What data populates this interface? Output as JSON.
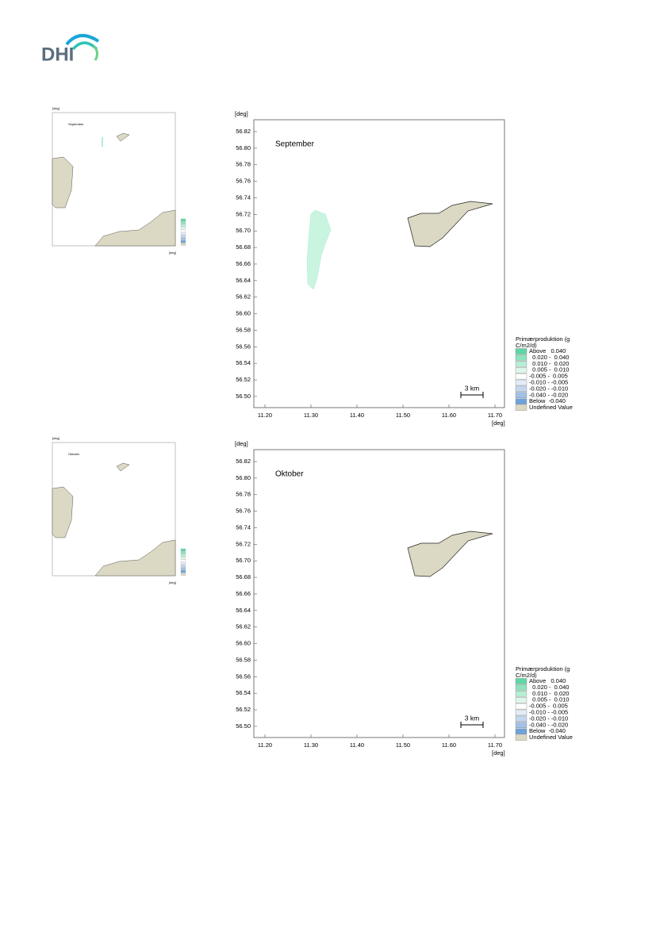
{
  "logo": "DHI",
  "maps": [
    {
      "title": "September"
    },
    {
      "title": "Oktober"
    }
  ],
  "axis": {
    "unit": "[deg]",
    "yticks": [
      "56.82",
      "56.80",
      "56.78",
      "56.76",
      "56.74",
      "56.72",
      "56.70",
      "56.68",
      "56.66",
      "56.64",
      "56.62",
      "56.60",
      "56.58",
      "56.56",
      "56.54",
      "56.52",
      "56.50"
    ],
    "xticks": [
      "11.20",
      "11.30",
      "11.40",
      "11.50",
      "11.60",
      "11.70"
    ]
  },
  "scale_bar": "3 km",
  "legend": {
    "title_lines": [
      "Primærproduktion (g",
      "C/m2/d)"
    ],
    "entries": [
      {
        "label": "Above   0.040",
        "color": "#5fd6a4"
      },
      {
        "label": "  0.020 -  0.040",
        "color": "#8ee3bd"
      },
      {
        "label": "  0.010 -  0.020",
        "color": "#b5eed4"
      },
      {
        "label": "  0.005 -  0.010",
        "color": "#dcf7ea"
      },
      {
        "label": "-0.005 -  0.005",
        "color": "#ffffff"
      },
      {
        "label": "-0.010 - -0.005",
        "color": "#e3ecf7"
      },
      {
        "label": "-0.020 - -0.010",
        "color": "#c4d7ef"
      },
      {
        "label": "-0.040 - -0.020",
        "color": "#a2c1e6"
      },
      {
        "label": "Below  -0.040",
        "color": "#6fa2db"
      },
      {
        "label": "Undefined Value",
        "color": "#dbd8c3"
      }
    ]
  }
}
